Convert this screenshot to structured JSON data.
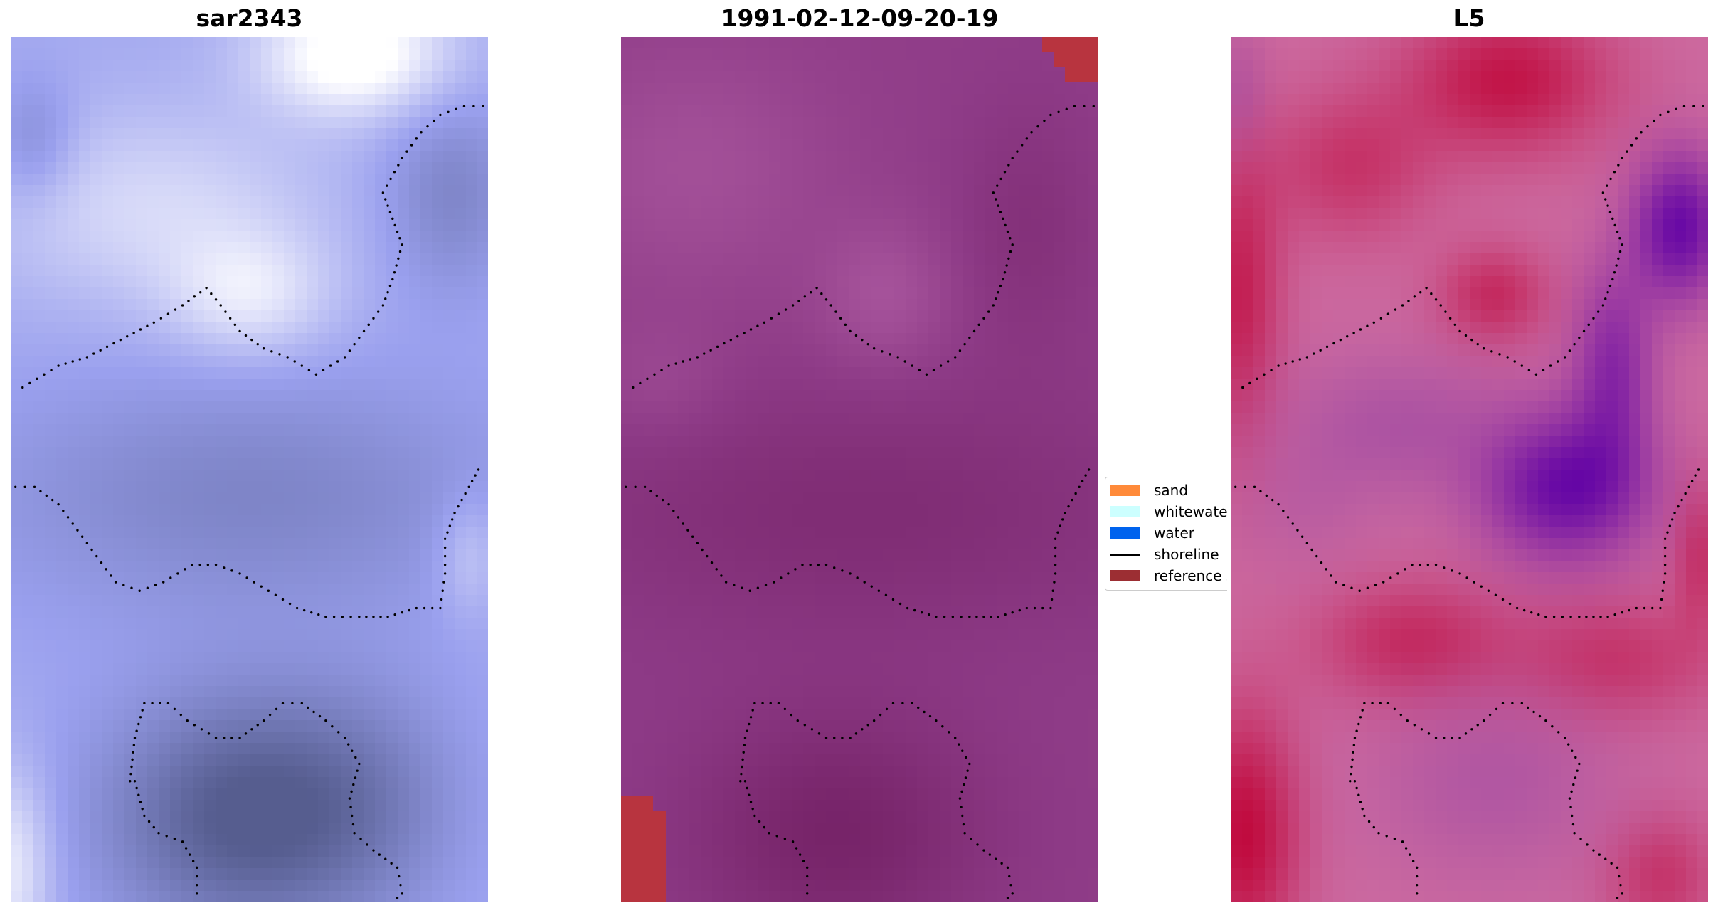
{
  "panels": [
    {
      "title": "sar2343",
      "colors": {
        "low": "#565d8f",
        "mid": "#9aa0ee",
        "high": "#ffffff"
      }
    },
    {
      "title": "1991-02-12-09-20-19",
      "colors": {
        "low": "#772469",
        "mid": "#8d3a86",
        "high": "#ab589f",
        "reference": "#b8343f"
      }
    },
    {
      "title": "L5",
      "colors": {
        "pink": "#cc6aa0",
        "red": "#bf0033",
        "violet": "#5f00a5",
        "purple": "#a04aa3"
      }
    }
  ],
  "legend": {
    "items": [
      {
        "label": "sand",
        "color": "#ff8a3a",
        "kind": "patch"
      },
      {
        "label": "whitewater",
        "color": "#ccffff",
        "kind": "patch"
      },
      {
        "label": "water",
        "color": "#0063ee",
        "kind": "patch"
      },
      {
        "label": "shoreline",
        "color": "#000000",
        "kind": "line"
      },
      {
        "label": "reference shoreline",
        "color": "#9c2e33",
        "kind": "patch"
      }
    ]
  }
}
